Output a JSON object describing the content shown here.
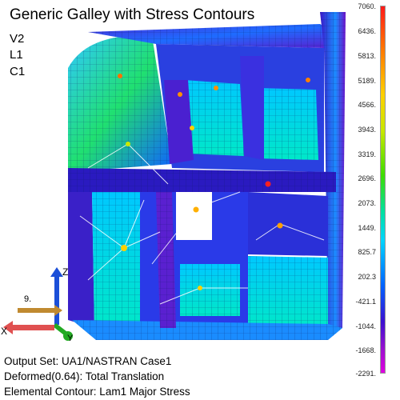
{
  "title": "Generic Galley with Stress Contours",
  "view_tags": [
    "V2",
    "L1",
    "C1"
  ],
  "output_info": [
    "Output Set: UA1/NASTRAN Case1",
    "Deformed(0.64): Total Translation",
    "Elemental Contour: Lam1 Major Stress"
  ],
  "legend_values": [
    "7060.",
    "6436.",
    "5813.",
    "5189.",
    "4566.",
    "3943.",
    "3319.",
    "2696.",
    "2073.",
    "1449.",
    "825.7",
    "202.3",
    "-421.1",
    "-1044.",
    "-1668.",
    "-2291."
  ],
  "axes": {
    "x": "X",
    "y": "Y",
    "z": "Z",
    "other": "9."
  },
  "colors": {
    "high": "#ff1a1a",
    "mid": "#3fdc00",
    "low": "#e000e0"
  }
}
